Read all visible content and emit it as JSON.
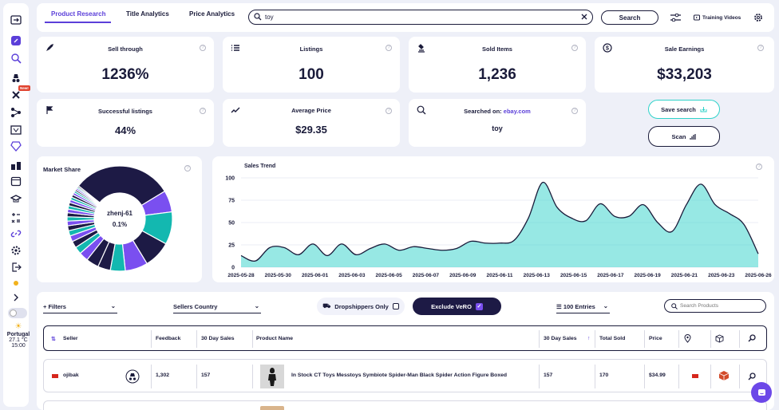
{
  "tabs": [
    {
      "label": "Product Research"
    },
    {
      "label": "Title Analytics"
    },
    {
      "label": "Price Analytics"
    }
  ],
  "search": {
    "value": "toy",
    "button_label": "Search"
  },
  "training_videos": "Training Videos",
  "sidebar": {
    "new_badge": "New!"
  },
  "weather": {
    "location": "Portugal",
    "temp": "27.1 °C",
    "time": "15:00"
  },
  "stats": {
    "sell_through": {
      "title": "Sell through",
      "value": "1236%"
    },
    "listings": {
      "title": "Listings",
      "value": "100"
    },
    "sold_items": {
      "title": "Sold Items",
      "value": "1,236"
    },
    "sale_earnings": {
      "title": "Sale Earnings",
      "value": "$33,203"
    },
    "successful": {
      "title": "Successful listings",
      "value": "44%"
    },
    "avg_price": {
      "title": "Average Price",
      "value": "$29.35"
    },
    "searched_on": {
      "title": "Searched on:",
      "site": "ebay.com",
      "value": "toy"
    }
  },
  "actions": {
    "save_search": "Save search",
    "scan": "Scan"
  },
  "market_share": {
    "title": "Market Share",
    "center_label": "zhenj-61",
    "center_value": "0.1%"
  },
  "sales_trend": {
    "title": "Sales Trend"
  },
  "chart_data": [
    {
      "type": "pie",
      "title": "Market Share",
      "slices": [
        {
          "label": "",
          "value": 30,
          "color": "#1d1a45"
        },
        {
          "label": "",
          "value": 6.5,
          "color": "#7a4ff0"
        },
        {
          "label": "",
          "value": 9.8,
          "color": "#13b8b0"
        },
        {
          "label": "",
          "value": 8.2,
          "color": "#1d1a45"
        },
        {
          "label": "",
          "value": 6.8,
          "color": "#7a4ff0"
        },
        {
          "label": "",
          "value": 4.5,
          "color": "#13b8b0"
        },
        {
          "label": "",
          "value": 3.8,
          "color": "#1d1a45"
        },
        {
          "label": "",
          "value": 3.8,
          "color": "#1d1a45"
        },
        {
          "label": "",
          "value": 2.8,
          "color": "#7a4ff0"
        },
        {
          "label": "",
          "value": 2.2,
          "color": "#13b8b0"
        },
        {
          "label": "",
          "value": 2.0,
          "color": "#1d1a45"
        },
        {
          "label": "",
          "value": 1.8,
          "color": "#7a4ff0"
        },
        {
          "label": "",
          "value": 1.6,
          "color": "#13b8b0"
        },
        {
          "label": "",
          "value": 1.5,
          "color": "#1d1a45"
        },
        {
          "label": "",
          "value": 1.4,
          "color": "#7a4ff0"
        },
        {
          "label": "",
          "value": 1.3,
          "color": "#13b8b0"
        },
        {
          "label": "",
          "value": 1.2,
          "color": "#1d1a45"
        },
        {
          "label": "",
          "value": 1.1,
          "color": "#7a4ff0"
        },
        {
          "label": "",
          "value": 1.0,
          "color": "#13b8b0"
        },
        {
          "label": "",
          "value": 1.0,
          "color": "#1d1a45"
        },
        {
          "label": "",
          "value": 0.9,
          "color": "#7a4ff0"
        },
        {
          "label": "",
          "value": 0.8,
          "color": "#13b8b0"
        },
        {
          "label": "",
          "value": 0.8,
          "color": "#1d1a45"
        },
        {
          "label": "",
          "value": 0.7,
          "color": "#7a4ff0"
        },
        {
          "label": "",
          "value": 0.6,
          "color": "#13b8b0"
        },
        {
          "label": "",
          "value": 0.5,
          "color": "#1d1a45"
        },
        {
          "label": "",
          "value": 0.5,
          "color": "#7a4ff0"
        },
        {
          "label": "",
          "value": 0.4,
          "color": "#13b8b0"
        },
        {
          "label": "",
          "value": 0.4,
          "color": "#1d1a45"
        }
      ]
    },
    {
      "type": "area",
      "title": "Sales Trend",
      "ylim": [
        0,
        100
      ],
      "yticks": [
        0,
        25,
        50,
        75,
        100
      ],
      "xticks": [
        "2025-05-28",
        "2025-05-30",
        "2025-06-01",
        "2025-06-03",
        "2025-06-05",
        "2025-06-07",
        "2025-06-09",
        "2025-06-11",
        "2025-06-13",
        "2025-06-15",
        "2025-06-17",
        "2025-06-19",
        "2025-06-21",
        "2025-06-23",
        "2025-06-26"
      ],
      "color": "#2fd2c9",
      "values": [
        13,
        7,
        22,
        22,
        14,
        26,
        13,
        26,
        14,
        21,
        26,
        19,
        23,
        21,
        19,
        21,
        29,
        27,
        27,
        30,
        55,
        95,
        67,
        55,
        52,
        71,
        57,
        57,
        70,
        50,
        40,
        70,
        93,
        70,
        60,
        48,
        15
      ]
    }
  ],
  "filters": {
    "filters_label": "Filters",
    "sellers_country": "Sellers Country",
    "dropshippers": "Dropshippers Only",
    "exclude_vero": "Exclude VeRO",
    "entries": "100 Entries",
    "search_products_placeholder": "Search Products"
  },
  "table": {
    "headers": [
      "Seller",
      "Feedback",
      "30 Day Sales",
      "Product Name",
      "30 Day Sales",
      "Total Sold",
      "Price"
    ],
    "rows": [
      {
        "seller": "ojibak",
        "feedback": "1,302",
        "sales30": "157",
        "product": "In Stock CT Toys Messtoys Symbiote Spider-Man Black Spider Action Figure Boxed",
        "sales30b": "157",
        "total_sold": "170",
        "price": "$34.99"
      }
    ]
  },
  "colors": {
    "accent": "#5b3fd9",
    "teal": "#2fd2c9",
    "dark": "#1a1b3a"
  }
}
